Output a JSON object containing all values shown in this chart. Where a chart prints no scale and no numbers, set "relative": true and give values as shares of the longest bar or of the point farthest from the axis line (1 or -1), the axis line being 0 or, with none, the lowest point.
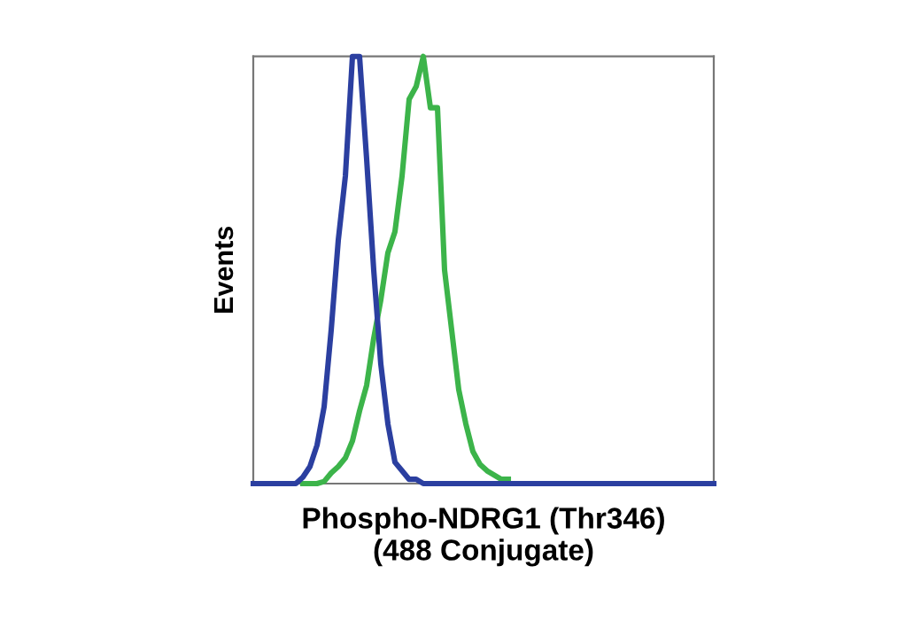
{
  "chart_data": {
    "type": "line",
    "relative": true,
    "xlabel": "Phospho-NDRG1 (Thr346)\n(488 Conjugate)",
    "ylabel": "Events",
    "legend": false,
    "grid": false,
    "marker": "none",
    "line_style": "solid",
    "categories": [
      null,
      null,
      null,
      null,
      null,
      null,
      null,
      null,
      null,
      null,
      null,
      null,
      null,
      null,
      null,
      null,
      null,
      null,
      null,
      null,
      null,
      null,
      null,
      null,
      null,
      null,
      null,
      null,
      null,
      null,
      null,
      null,
      null,
      null,
      null,
      null,
      null,
      null,
      null,
      null,
      null,
      null,
      null,
      null,
      null,
      null,
      null,
      null,
      null,
      null,
      null,
      null,
      null,
      null,
      null,
      null,
      null,
      null,
      null,
      null,
      null,
      null,
      null,
      null,
      null,
      null
    ],
    "series": [
      {
        "color": "#2b3fa0",
        "values": [
          0,
          0,
          0,
          0,
          0,
          0,
          0,
          0.015,
          0.04,
          0.09,
          0.18,
          0.36,
          0.57,
          0.72,
          1.0,
          1.0,
          0.76,
          0.5,
          0.28,
          0.14,
          0.05,
          0.03,
          0.01,
          0.01,
          0,
          0,
          0,
          0,
          0,
          0,
          0,
          0,
          0,
          0,
          0,
          0,
          0,
          0,
          0,
          0,
          0,
          0,
          0,
          0,
          0,
          0,
          0,
          0,
          0,
          0,
          0,
          0,
          0,
          0,
          0,
          0,
          0,
          0,
          0,
          0,
          0,
          0,
          0,
          0,
          0,
          0
        ]
      },
      {
        "color": "#3cb44a",
        "values": [
          null,
          null,
          null,
          null,
          null,
          null,
          null,
          0,
          0,
          0,
          0.005,
          0.025,
          0.04,
          0.06,
          0.1,
          0.17,
          0.23,
          0.34,
          0.43,
          0.54,
          0.59,
          0.72,
          0.9,
          0.93,
          1.0,
          0.88,
          0.88,
          0.5,
          0.36,
          0.22,
          0.14,
          0.075,
          0.045,
          0.03,
          0.02,
          0.01,
          0.01,
          null,
          null,
          null,
          null,
          null,
          null,
          null,
          null,
          null,
          null,
          null,
          null,
          null,
          null,
          null,
          null,
          null,
          null,
          null,
          null,
          null,
          null,
          null,
          null,
          null,
          null,
          null,
          null,
          null
        ]
      }
    ]
  }
}
